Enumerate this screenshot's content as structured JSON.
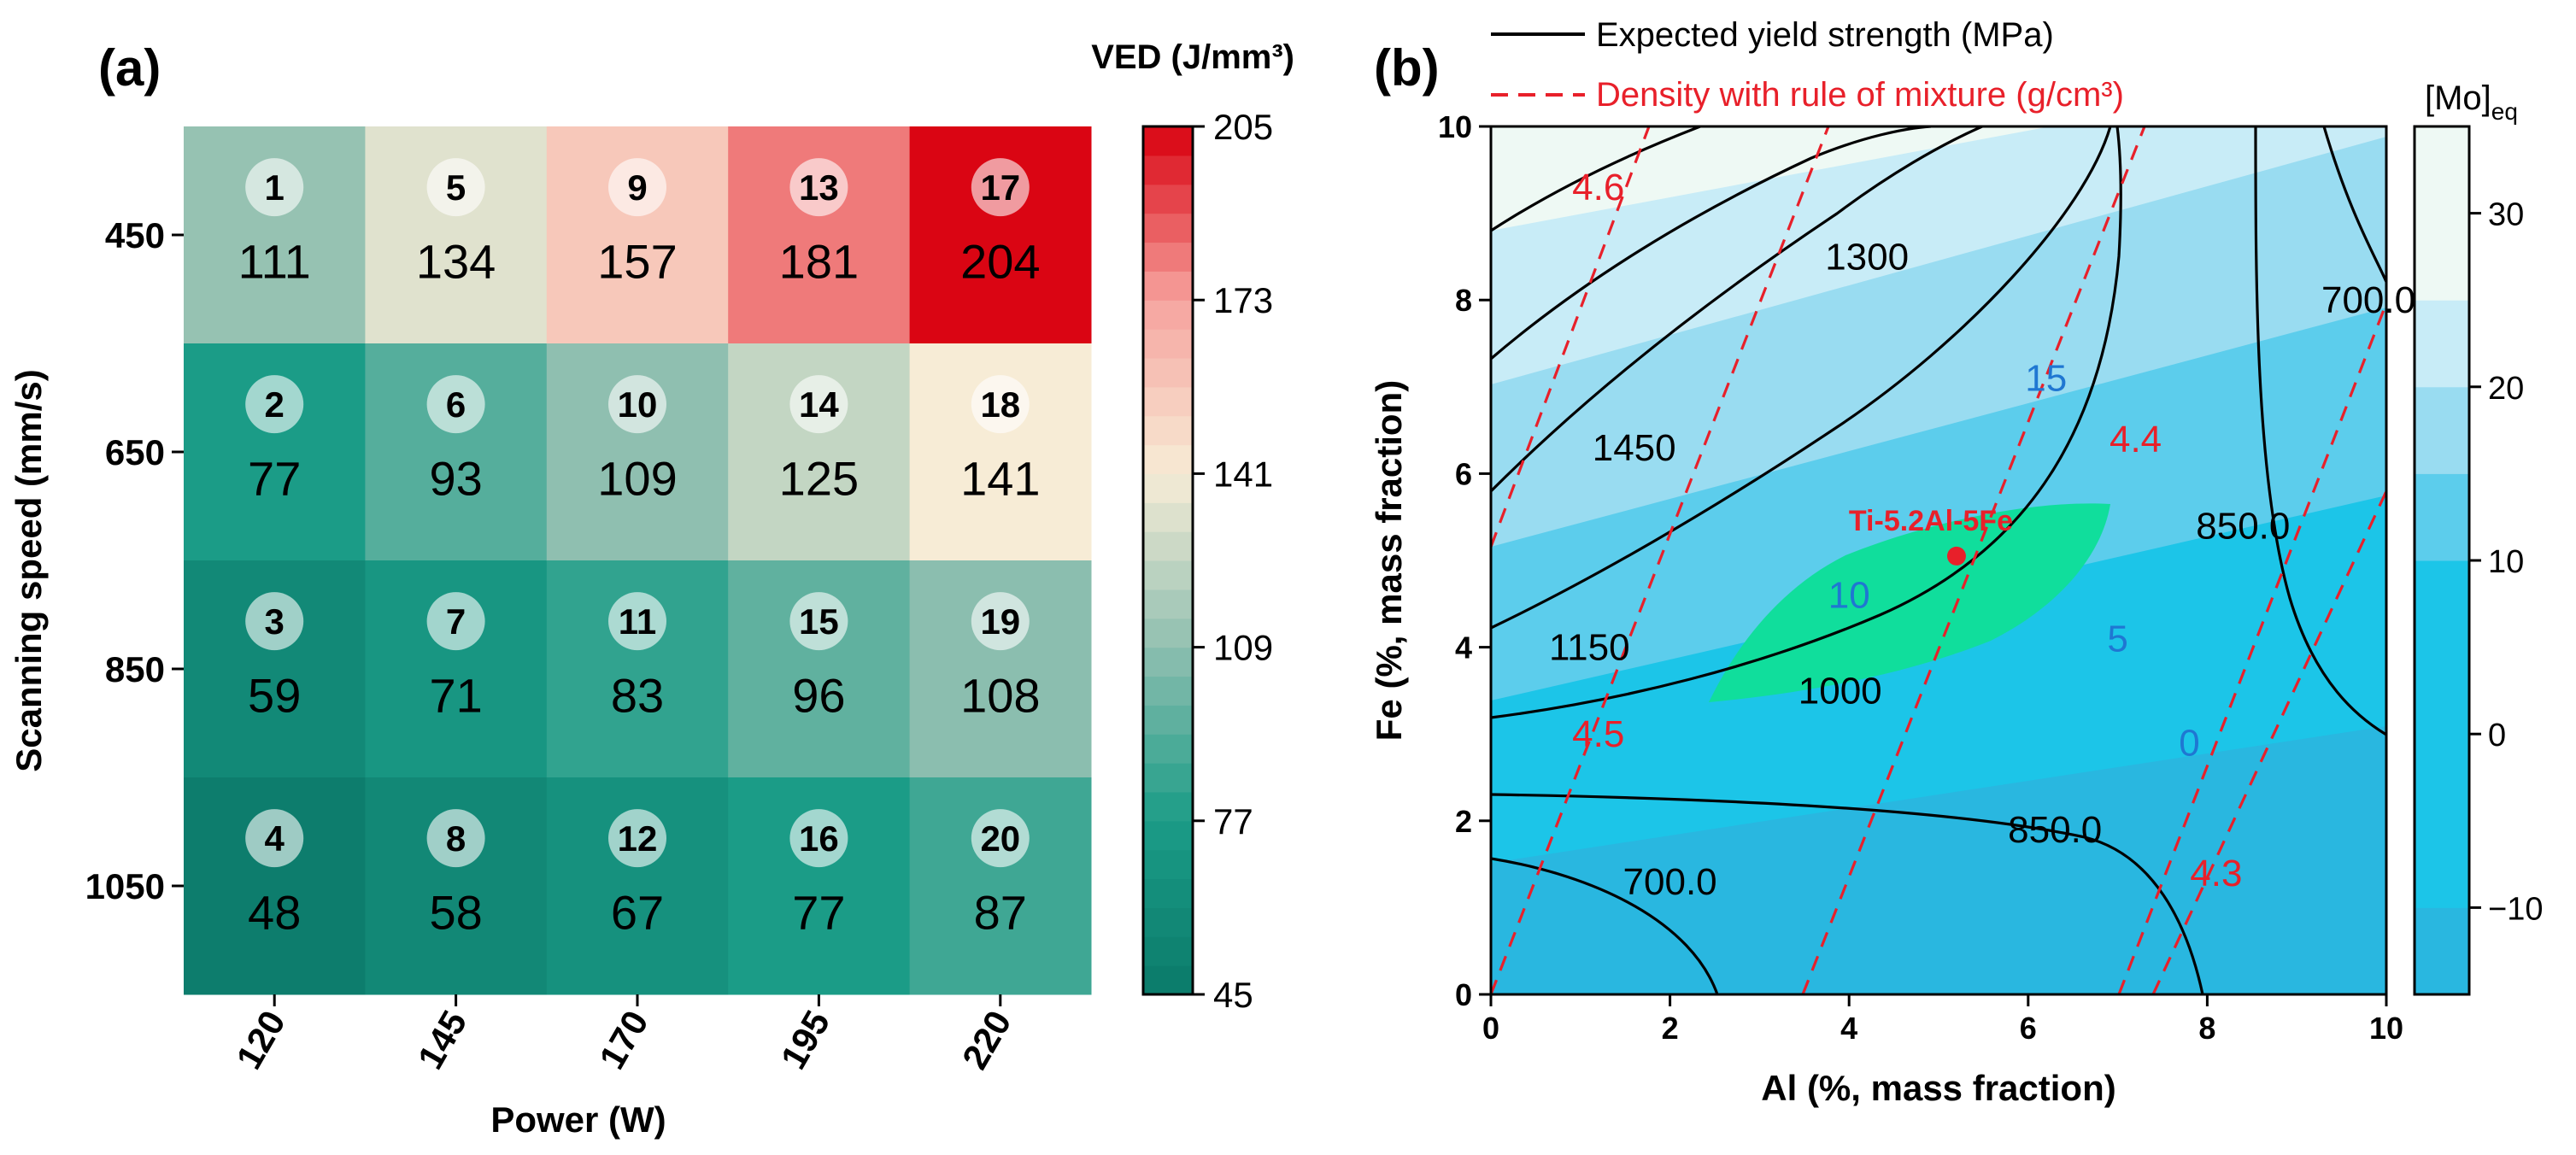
{
  "chart_data": [
    {
      "type": "heatmap",
      "panel_label": "(a)",
      "xlabel": "Power (W)",
      "ylabel": "Scanning speed (mm/s)",
      "x_categories": [
        "120",
        "145",
        "170",
        "195",
        "220"
      ],
      "y_categories": [
        "450",
        "650",
        "850",
        "1050"
      ],
      "cells": [
        {
          "row": 0,
          "col": 0,
          "id": "1",
          "value": 111
        },
        {
          "row": 1,
          "col": 0,
          "id": "2",
          "value": 77
        },
        {
          "row": 2,
          "col": 0,
          "id": "3",
          "value": 59
        },
        {
          "row": 3,
          "col": 0,
          "id": "4",
          "value": 48
        },
        {
          "row": 0,
          "col": 1,
          "id": "5",
          "value": 134
        },
        {
          "row": 1,
          "col": 1,
          "id": "6",
          "value": 93
        },
        {
          "row": 2,
          "col": 1,
          "id": "7",
          "value": 71
        },
        {
          "row": 3,
          "col": 1,
          "id": "8",
          "value": 58
        },
        {
          "row": 0,
          "col": 2,
          "id": "9",
          "value": 157
        },
        {
          "row": 1,
          "col": 2,
          "id": "10",
          "value": 109
        },
        {
          "row": 2,
          "col": 2,
          "id": "11",
          "value": 83
        },
        {
          "row": 3,
          "col": 2,
          "id": "12",
          "value": 67
        },
        {
          "row": 0,
          "col": 3,
          "id": "13",
          "value": 181
        },
        {
          "row": 1,
          "col": 3,
          "id": "14",
          "value": 125
        },
        {
          "row": 2,
          "col": 3,
          "id": "15",
          "value": 96
        },
        {
          "row": 3,
          "col": 3,
          "id": "16",
          "value": 77
        },
        {
          "row": 0,
          "col": 4,
          "id": "17",
          "value": 204
        },
        {
          "row": 1,
          "col": 4,
          "id": "18",
          "value": 141
        },
        {
          "row": 2,
          "col": 4,
          "id": "19",
          "value": 108
        },
        {
          "row": 3,
          "col": 4,
          "id": "20",
          "value": 87
        }
      ],
      "colorbar": {
        "title": "VED (J/mm³)",
        "range": [
          45,
          205
        ],
        "ticks": [
          "45",
          "77",
          "109",
          "141",
          "173",
          "205"
        ],
        "colors": [
          "#0b7a6a",
          "#1b9c87",
          "#8fbfb0",
          "#f7ecd6",
          "#f6a39e",
          "#d9000f"
        ]
      }
    },
    {
      "type": "contour",
      "panel_label": "(b)",
      "xlabel": "Al (%, mass fraction)",
      "ylabel": "Fe (%, mass fraction)",
      "xlim": [
        0,
        10
      ],
      "ylim": [
        0,
        10
      ],
      "x_ticks": [
        "0",
        "2",
        "4",
        "6",
        "8",
        "10"
      ],
      "y_ticks": [
        "0",
        "2",
        "4",
        "6",
        "8",
        "10"
      ],
      "legend": [
        {
          "label": "Expected yield strength (MPa)",
          "style": "solid",
          "color": "#000000"
        },
        {
          "label": "Density with rule of mixture (g/cm³)",
          "style": "dashed",
          "color": "#e8202a"
        }
      ],
      "mo_eq_levels": [
        {
          "label": "15",
          "x": 6.2,
          "y": 7.1
        },
        {
          "label": "10",
          "x": 4.0,
          "y": 4.6
        },
        {
          "label": "5",
          "x": 7.0,
          "y": 4.1
        },
        {
          "label": "0",
          "x": 7.8,
          "y": 2.9
        }
      ],
      "yield_strength_labels": [
        {
          "label": "1300",
          "x": 4.2,
          "y": 8.5
        },
        {
          "label": "700.0",
          "x": 9.8,
          "y": 8.0
        },
        {
          "label": "1450",
          "x": 1.6,
          "y": 6.3
        },
        {
          "label": "850.0",
          "x": 8.4,
          "y": 5.4
        },
        {
          "label": "1150",
          "x": 1.1,
          "y": 4.0
        },
        {
          "label": "1000",
          "x": 3.9,
          "y": 3.5
        },
        {
          "label": "850.0",
          "x": 6.3,
          "y": 1.9
        },
        {
          "label": "700.0",
          "x": 2.0,
          "y": 1.3
        }
      ],
      "density_labels": [
        {
          "label": "4.6",
          "x": 1.2,
          "y": 9.3
        },
        {
          "label": "4.4",
          "x": 7.2,
          "y": 6.4
        },
        {
          "label": "4.5",
          "x": 1.2,
          "y": 3.0
        },
        {
          "label": "4.3",
          "x": 8.1,
          "y": 1.4
        }
      ],
      "point": {
        "label": "Ti-5.2Al-5Fe",
        "x": 5.2,
        "y": 5.05
      },
      "colorbar": {
        "title": "[Mo]eq",
        "range": [
          -15,
          35
        ],
        "ticks": [
          "−10",
          "0",
          "10",
          "20",
          "30"
        ]
      }
    }
  ]
}
